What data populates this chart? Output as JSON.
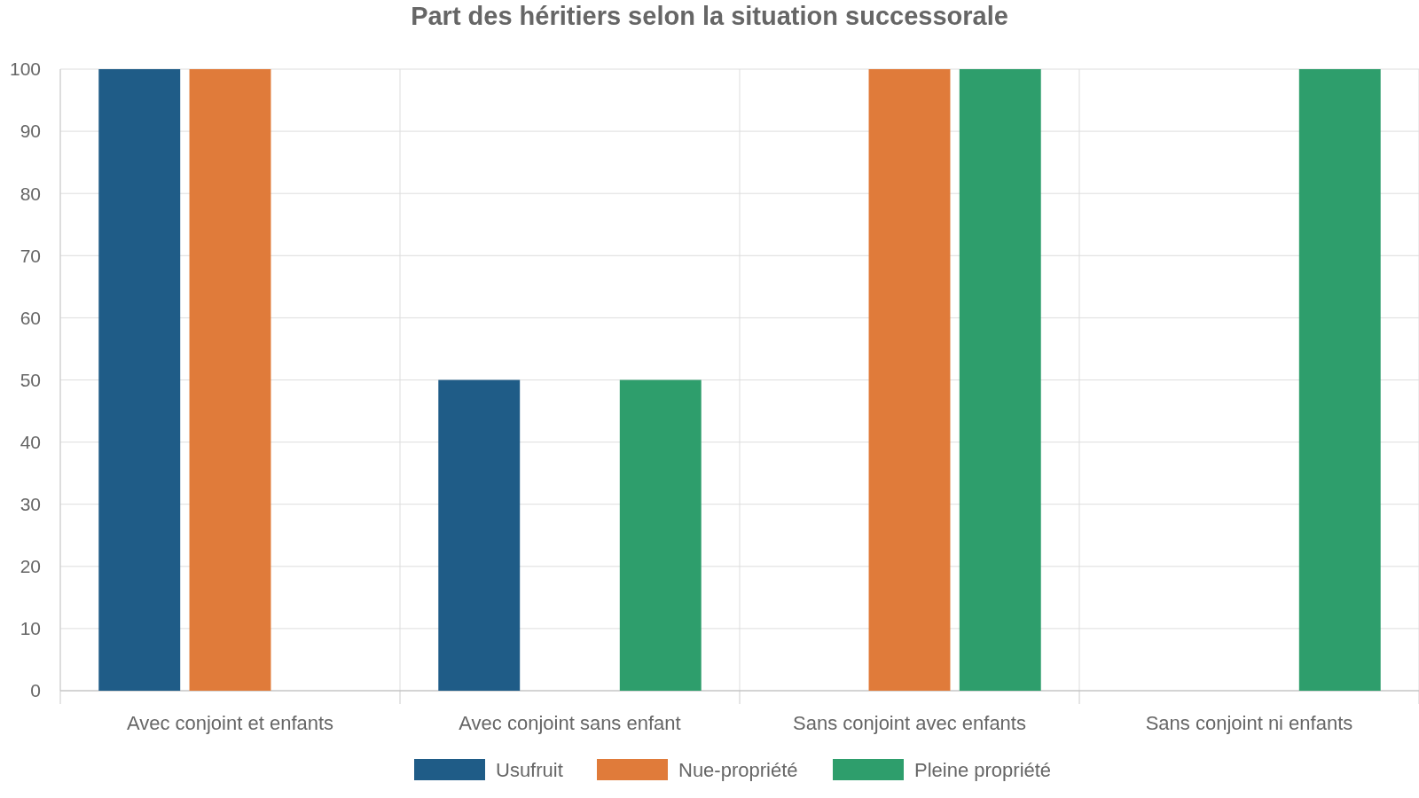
{
  "chart_data": {
    "type": "bar",
    "title": "Part des héritiers selon la situation successorale",
    "categories": [
      "Avec conjoint et enfants",
      "Avec conjoint sans enfant",
      "Sans conjoint avec enfants",
      "Sans conjoint ni enfants"
    ],
    "series": [
      {
        "name": "Usufruit",
        "color": "#1f5c87",
        "values": [
          100,
          50,
          0,
          0
        ]
      },
      {
        "name": "Nue-propriété",
        "color": "#e07b3a",
        "values": [
          100,
          0,
          100,
          0
        ]
      },
      {
        "name": "Pleine propriété",
        "color": "#2e9e6c",
        "values": [
          0,
          50,
          100,
          100
        ]
      }
    ],
    "ylim": [
      0,
      100
    ],
    "yticks": [
      0,
      10,
      20,
      30,
      40,
      50,
      60,
      70,
      80,
      90,
      100
    ],
    "grid": true,
    "legend": "bottom"
  }
}
